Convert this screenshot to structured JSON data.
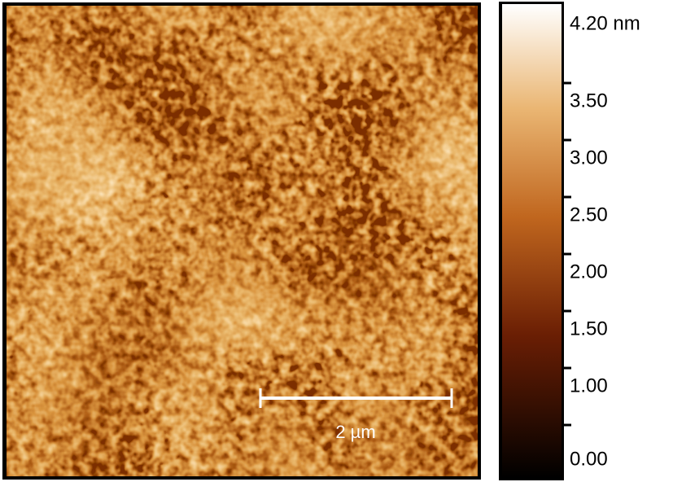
{
  "colorbar": {
    "range": [
      0,
      4.2
    ],
    "ticks": [
      {
        "value": 0,
        "label": "0.00"
      },
      {
        "value": 1,
        "label": "1.00"
      },
      {
        "value": 1.5,
        "label": "1.50"
      },
      {
        "value": 2,
        "label": "2.00"
      },
      {
        "value": 2.5,
        "label": "2.50"
      },
      {
        "value": 3,
        "label": "3.00"
      },
      {
        "value": 3.5,
        "label": "3.50"
      },
      {
        "value": 4.2,
        "label": "4.20 nm"
      }
    ],
    "minor_ticks": [
      0.5
    ]
  },
  "scale_bar": {
    "label": "2 µm"
  }
}
